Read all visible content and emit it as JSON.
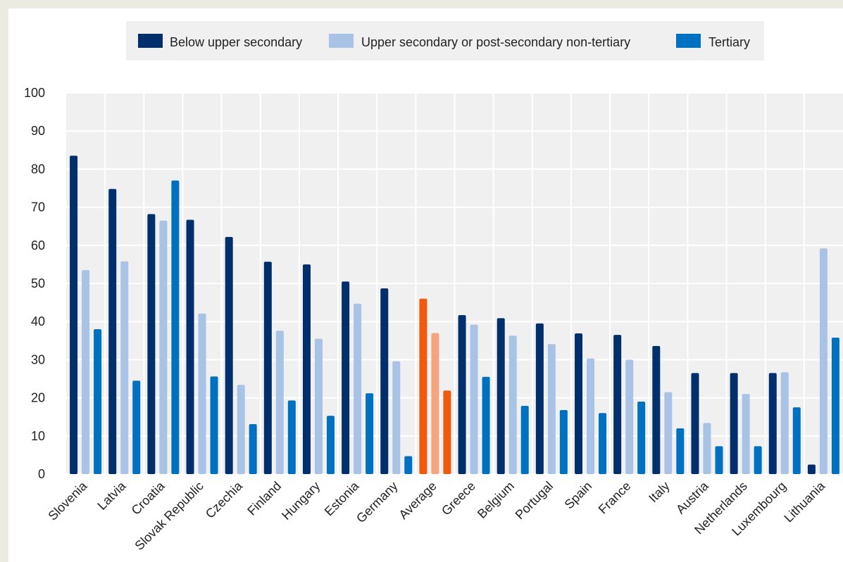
{
  "chart_data": {
    "type": "bar",
    "ylim": [
      0,
      100
    ],
    "yticks": [
      0,
      10,
      20,
      30,
      40,
      50,
      60,
      70,
      80,
      90,
      100
    ],
    "grid": true,
    "legend_position": "top-center",
    "categories": [
      "Slovenia",
      "Latvia",
      "Croatia",
      "Slovak Republic",
      "Czechia",
      "Finland",
      "Hungary",
      "Estonia",
      "Germany",
      "Average",
      "Greece",
      "Belgium",
      "Portugal",
      "Spain",
      "France",
      "Italy",
      "Austria",
      "Netherlands",
      "Luxembourg",
      "Lithuania"
    ],
    "highlight_category": "Average",
    "series": [
      {
        "name": "Below upper secondary",
        "color": "#002f6c",
        "highlight_color": "#f05a0f",
        "values": [
          83.5,
          74.8,
          68.2,
          66.7,
          62.2,
          55.7,
          55.0,
          50.5,
          48.7,
          46.0,
          41.7,
          40.9,
          39.5,
          36.9,
          36.5,
          33.6,
          26.5,
          26.5,
          26.5,
          2.5
        ]
      },
      {
        "name": "Upper secondary or post-secondary non-tertiary",
        "color": "#a9c3e6",
        "highlight_color": "#f4a47e",
        "values": [
          53.5,
          55.8,
          66.5,
          42.1,
          23.4,
          37.6,
          35.5,
          44.7,
          29.6,
          37.0,
          39.2,
          36.3,
          34.1,
          30.3,
          30.0,
          21.5,
          13.4,
          21.0,
          26.7,
          59.2
        ]
      },
      {
        "name": "Tertiary",
        "color": "#0070c0",
        "highlight_color": "#f05a0f",
        "values": [
          38.0,
          24.5,
          77.0,
          25.6,
          13.1,
          19.3,
          15.3,
          21.2,
          4.7,
          21.9,
          25.5,
          17.9,
          16.8,
          16.0,
          19.0,
          12.0,
          7.3,
          7.3,
          17.5,
          35.8
        ]
      }
    ]
  }
}
